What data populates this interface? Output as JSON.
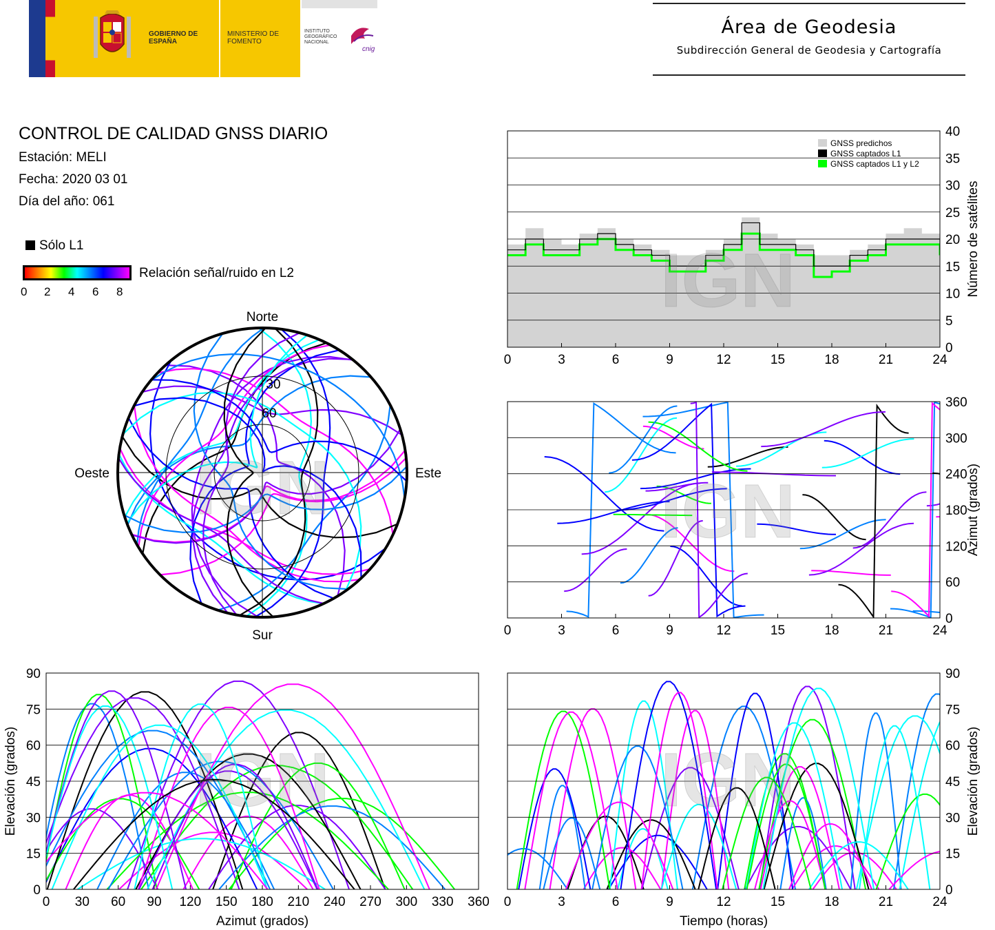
{
  "header": {
    "gov_name": "GOBIERNO DE ESPAÑA",
    "ministry": "MINISTERIO DE FOMENTO",
    "institute": "INSTITUTO GEOGRÁFICO NACIONAL",
    "cnig": "cnig",
    "area_title": "Área de Geodesia",
    "area_subtitle": "Subdirección General de Geodesia y Cartografía"
  },
  "report": {
    "title": "CONTROL DE CALIDAD GNSS DIARIO",
    "station": "Estación: MELI",
    "date": "Fecha: 2020 03 01",
    "doy": "Día del año: 061"
  },
  "legend": {
    "solo_l1": "Sólo L1",
    "snr_label": "Relación señal/ruido en L2",
    "snr_ticks": [
      "0",
      "2",
      "4",
      "6",
      "8"
    ]
  },
  "watermark": "IGN",
  "colors": {
    "predicted": "#d3d3d3",
    "l1": "#000000",
    "l1l2": "#00ff00",
    "snr_scale": [
      "#ff0000",
      "#ff8000",
      "#ffff00",
      "#00ff00",
      "#00ffff",
      "#0080ff",
      "#0000ff",
      "#8000ff",
      "#ff00ff"
    ]
  },
  "chart_data": [
    {
      "id": "satellites",
      "type": "area",
      "ylabel": "Número de satélites",
      "xlim": [
        0,
        24
      ],
      "ylim": [
        0,
        40
      ],
      "x_ticks": [
        "0",
        "3",
        "6",
        "9",
        "12",
        "15",
        "18",
        "21",
        "24"
      ],
      "y_ticks": [
        "0",
        "5",
        "10",
        "15",
        "20",
        "25",
        "30",
        "35",
        "40"
      ],
      "grid": true,
      "legend_position": "top-right",
      "legend": [
        "GNSS predichos",
        "GNSS captados L1",
        "GNSS captados L1 y L2"
      ],
      "x": [
        0,
        1,
        2,
        3,
        4,
        5,
        6,
        7,
        8,
        9,
        10,
        11,
        12,
        13,
        14,
        15,
        16,
        17,
        18,
        19,
        20,
        21,
        22,
        23,
        24
      ],
      "series": [
        {
          "name": "GNSS predichos",
          "values": [
            19,
            22,
            20,
            19,
            21,
            22,
            20,
            19,
            18,
            17,
            17,
            18,
            20,
            24,
            21,
            20,
            19,
            17,
            17,
            18,
            19,
            21,
            22,
            21,
            20
          ]
        },
        {
          "name": "GNSS captados L1",
          "values": [
            18,
            20,
            18,
            18,
            20,
            21,
            19,
            18,
            17,
            15,
            15,
            17,
            19,
            23,
            19,
            19,
            18,
            15,
            15,
            17,
            18,
            20,
            20,
            20,
            18
          ]
        },
        {
          "name": "GNSS captados L1 y L2",
          "values": [
            17,
            19,
            17,
            17,
            19,
            20,
            18,
            17,
            16,
            14,
            14,
            16,
            18,
            21,
            18,
            18,
            17,
            13,
            14,
            16,
            17,
            19,
            19,
            19,
            17
          ]
        }
      ]
    },
    {
      "id": "polar",
      "type": "scatter",
      "labels": {
        "north": "Norte",
        "south": "Sur",
        "east": "Este",
        "west": "Oeste"
      },
      "ring_labels": [
        "30",
        "60"
      ]
    },
    {
      "id": "azimuth_time",
      "type": "scatter",
      "ylabel": "Azimut (grados)",
      "xlim": [
        0,
        24
      ],
      "ylim": [
        0,
        360
      ],
      "x_ticks": [
        "0",
        "3",
        "6",
        "9",
        "12",
        "15",
        "18",
        "21",
        "24"
      ],
      "y_ticks": [
        "0",
        "60",
        "120",
        "180",
        "240",
        "300",
        "360"
      ],
      "grid": true
    },
    {
      "id": "elevation_azimuth",
      "type": "scatter",
      "xlabel": "Azimut (grados)",
      "ylabel": "Elevación (grados)",
      "xlim": [
        0,
        360
      ],
      "ylim": [
        0,
        90
      ],
      "x_ticks": [
        "0",
        "30",
        "60",
        "90",
        "120",
        "150",
        "180",
        "210",
        "240",
        "270",
        "300",
        "330",
        "360"
      ],
      "y_ticks": [
        "0",
        "15",
        "30",
        "45",
        "60",
        "75",
        "90"
      ],
      "grid": true
    },
    {
      "id": "elevation_time",
      "type": "scatter",
      "xlabel": "Tiempo (horas)",
      "ylabel": "Elevación (grados)",
      "xlim": [
        0,
        24
      ],
      "ylim": [
        0,
        90
      ],
      "x_ticks": [
        "0",
        "3",
        "6",
        "9",
        "12",
        "15",
        "18",
        "21",
        "24"
      ],
      "y_ticks": [
        "0",
        "15",
        "30",
        "45",
        "60",
        "75",
        "90"
      ],
      "grid": true
    }
  ]
}
